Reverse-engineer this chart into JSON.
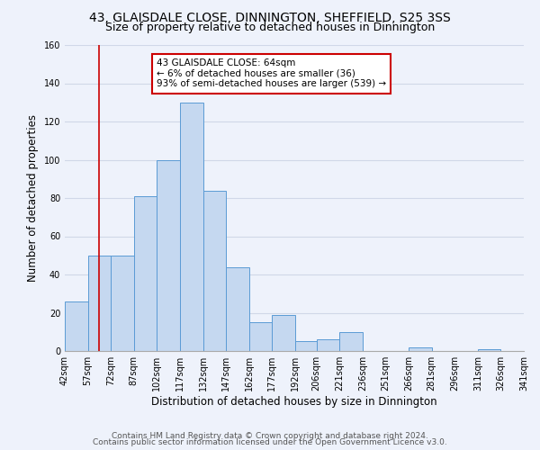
{
  "title": "43, GLAISDALE CLOSE, DINNINGTON, SHEFFIELD, S25 3SS",
  "subtitle": "Size of property relative to detached houses in Dinnington",
  "xlabel": "Distribution of detached houses by size in Dinnington",
  "ylabel": "Number of detached properties",
  "bin_edges": [
    42,
    57,
    72,
    87,
    102,
    117,
    132,
    147,
    162,
    177,
    192,
    206,
    221,
    236,
    251,
    266,
    281,
    296,
    311,
    326,
    341
  ],
  "bar_heights": [
    26,
    50,
    50,
    81,
    100,
    130,
    84,
    44,
    15,
    19,
    5,
    6,
    10,
    0,
    0,
    2,
    0,
    0,
    1,
    0
  ],
  "bar_color": "#c5d8f0",
  "bar_edge_color": "#5b9bd5",
  "red_line_x": 64,
  "annotation_text": "43 GLAISDALE CLOSE: 64sqm\n← 6% of detached houses are smaller (36)\n93% of semi-detached houses are larger (539) →",
  "annotation_box_color": "#ffffff",
  "annotation_box_edge_color": "#cc0000",
  "ylim": [
    0,
    160
  ],
  "yticks": [
    0,
    20,
    40,
    60,
    80,
    100,
    120,
    140,
    160
  ],
  "tick_labels": [
    "42sqm",
    "57sqm",
    "72sqm",
    "87sqm",
    "102sqm",
    "117sqm",
    "132sqm",
    "147sqm",
    "162sqm",
    "177sqm",
    "192sqm",
    "206sqm",
    "221sqm",
    "236sqm",
    "251sqm",
    "266sqm",
    "281sqm",
    "296sqm",
    "311sqm",
    "326sqm",
    "341sqm"
  ],
  "footer_line1": "Contains HM Land Registry data © Crown copyright and database right 2024.",
  "footer_line2": "Contains public sector information licensed under the Open Government Licence v3.0.",
  "background_color": "#eef2fb",
  "grid_color": "#d0d8e8",
  "title_fontsize": 10,
  "subtitle_fontsize": 9,
  "axis_label_fontsize": 8.5,
  "tick_fontsize": 7,
  "annotation_fontsize": 7.5,
  "footer_fontsize": 6.5
}
